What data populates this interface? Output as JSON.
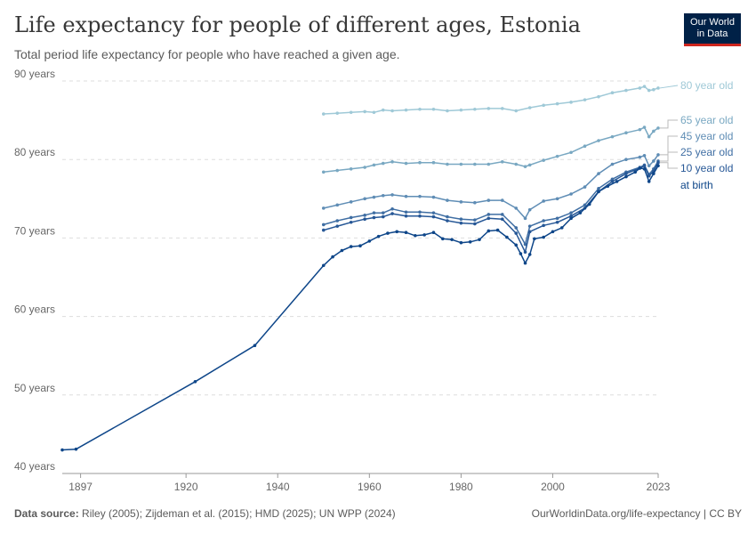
{
  "header": {
    "title": "Life expectancy for people of different ages, Estonia",
    "subtitle": "Total period life expectancy for people who have reached a given age."
  },
  "logo": {
    "line1": "Our World",
    "line2": "in Data"
  },
  "footer": {
    "source_label": "Data source:",
    "source_text": " Riley (2005); Zijdeman et al. (2015); HMD (2025); UN WPP (2024)",
    "url": "OurWorldinData.org/life-expectancy | CC BY"
  },
  "chart_data": {
    "type": "line",
    "title": "Life expectancy for people of different ages, Estonia",
    "subtitle": "Total period life expectancy for people who have reached a given age.",
    "xlim": [
      1897,
      2023
    ],
    "ylim": [
      40,
      90
    ],
    "y_ticks": [
      40,
      50,
      60,
      70,
      80,
      90
    ],
    "y_tick_labels": [
      "40 years",
      "50 years",
      "60 years",
      "70 years",
      "80 years",
      "90 years"
    ],
    "x_ticks": [
      1897,
      1920,
      1940,
      1960,
      1980,
      2000,
      2023
    ],
    "x_tick_labels": [
      "1897",
      "1920",
      "1940",
      "1960",
      "1980",
      "2000",
      "2023"
    ],
    "grid": "horizontal dashed",
    "legend": "right, labels at line ends",
    "series": [
      {
        "name": "80 year old",
        "color": "#9fc9d7",
        "x": [
          1950,
          1953,
          1956,
          1959,
          1961,
          1963,
          1965,
          1968,
          1971,
          1974,
          1977,
          1980,
          1983,
          1986,
          1989,
          1992,
          1995,
          1998,
          2001,
          2004,
          2007,
          2010,
          2013,
          2016,
          2019,
          2020,
          2021,
          2022,
          2023
        ],
        "y": [
          85.8,
          85.9,
          86.0,
          86.1,
          86.0,
          86.3,
          86.2,
          86.3,
          86.4,
          86.4,
          86.2,
          86.3,
          86.4,
          86.5,
          86.5,
          86.2,
          86.6,
          86.9,
          87.1,
          87.3,
          87.6,
          88.0,
          88.5,
          88.8,
          89.1,
          89.3,
          88.8,
          88.9,
          89.1
        ]
      },
      {
        "name": "65 year old",
        "color": "#79a8c2",
        "x": [
          1950,
          1953,
          1956,
          1959,
          1961,
          1963,
          1965,
          1968,
          1971,
          1974,
          1977,
          1980,
          1983,
          1986,
          1989,
          1992,
          1994,
          1995,
          1998,
          2001,
          2004,
          2007,
          2010,
          2013,
          2016,
          2019,
          2020,
          2021,
          2022,
          2023
        ],
        "y": [
          78.4,
          78.6,
          78.8,
          79.0,
          79.3,
          79.5,
          79.7,
          79.5,
          79.6,
          79.6,
          79.4,
          79.4,
          79.4,
          79.4,
          79.7,
          79.4,
          79.1,
          79.3,
          79.9,
          80.4,
          80.9,
          81.7,
          82.4,
          82.9,
          83.4,
          83.8,
          84.1,
          82.9,
          83.6,
          84.0
        ]
      },
      {
        "name": "45 year old",
        "color": "#5f8db5",
        "x": [
          1950,
          1953,
          1956,
          1959,
          1961,
          1963,
          1965,
          1968,
          1971,
          1974,
          1977,
          1980,
          1983,
          1986,
          1989,
          1992,
          1994,
          1995,
          1998,
          2001,
          2004,
          2007,
          2010,
          2013,
          2016,
          2019,
          2020,
          2021,
          2022,
          2023
        ],
        "y": [
          73.8,
          74.2,
          74.6,
          75.0,
          75.2,
          75.4,
          75.5,
          75.3,
          75.3,
          75.2,
          74.8,
          74.6,
          74.5,
          74.8,
          74.8,
          73.8,
          72.5,
          73.6,
          74.7,
          75.0,
          75.6,
          76.5,
          78.2,
          79.4,
          80.0,
          80.3,
          80.5,
          79.2,
          79.8,
          80.6
        ]
      },
      {
        "name": "25 year old",
        "color": "#3f6ea3",
        "x": [
          1950,
          1953,
          1956,
          1959,
          1961,
          1963,
          1965,
          1968,
          1971,
          1974,
          1977,
          1980,
          1983,
          1986,
          1989,
          1992,
          1994,
          1995,
          1998,
          2001,
          2004,
          2007,
          2010,
          2013,
          2016,
          2019,
          2020,
          2021,
          2022,
          2023
        ],
        "y": [
          71.7,
          72.2,
          72.6,
          72.9,
          73.2,
          73.2,
          73.7,
          73.3,
          73.3,
          73.2,
          72.7,
          72.4,
          72.3,
          73.0,
          73.0,
          71.3,
          69.2,
          71.5,
          72.2,
          72.5,
          73.2,
          74.2,
          76.3,
          77.5,
          78.4,
          79.0,
          79.3,
          78.1,
          78.8,
          79.8
        ]
      },
      {
        "name": "10 year old",
        "color": "#265796",
        "x": [
          1950,
          1953,
          1956,
          1959,
          1961,
          1963,
          1965,
          1968,
          1971,
          1974,
          1977,
          1980,
          1983,
          1986,
          1989,
          1992,
          1994,
          1995,
          1998,
          2001,
          2004,
          2007,
          2010,
          2013,
          2016,
          2019,
          2020,
          2021,
          2022,
          2023
        ],
        "y": [
          71.0,
          71.5,
          72.0,
          72.4,
          72.6,
          72.7,
          73.1,
          72.8,
          72.8,
          72.7,
          72.2,
          71.9,
          71.8,
          72.5,
          72.4,
          70.6,
          68.2,
          70.8,
          71.6,
          72.0,
          72.8,
          73.8,
          75.9,
          77.2,
          78.2,
          78.9,
          79.2,
          77.9,
          78.5,
          79.6
        ]
      },
      {
        "name": "at birth",
        "color": "#0e4689",
        "x": [
          1893,
          1896,
          1922,
          1935,
          1950,
          1952,
          1954,
          1956,
          1958,
          1960,
          1962,
          1964,
          1966,
          1968,
          1970,
          1972,
          1974,
          1976,
          1978,
          1980,
          1982,
          1984,
          1986,
          1988,
          1990,
          1992,
          1993,
          1994,
          1995,
          1996,
          1998,
          2000,
          2002,
          2004,
          2006,
          2008,
          2010,
          2012,
          2014,
          2016,
          2018,
          2019,
          2020,
          2021,
          2022,
          2023
        ],
        "y": [
          43.0,
          43.1,
          51.7,
          56.3,
          66.5,
          67.6,
          68.4,
          68.9,
          69.0,
          69.6,
          70.2,
          70.6,
          70.8,
          70.7,
          70.3,
          70.4,
          70.7,
          69.9,
          69.8,
          69.4,
          69.5,
          69.8,
          70.9,
          71.0,
          70.1,
          69.1,
          68.0,
          66.8,
          67.9,
          69.9,
          70.1,
          70.8,
          71.3,
          72.5,
          73.2,
          74.3,
          75.9,
          76.6,
          77.2,
          77.8,
          78.4,
          78.9,
          78.8,
          77.2,
          78.2,
          79.2
        ]
      }
    ]
  }
}
